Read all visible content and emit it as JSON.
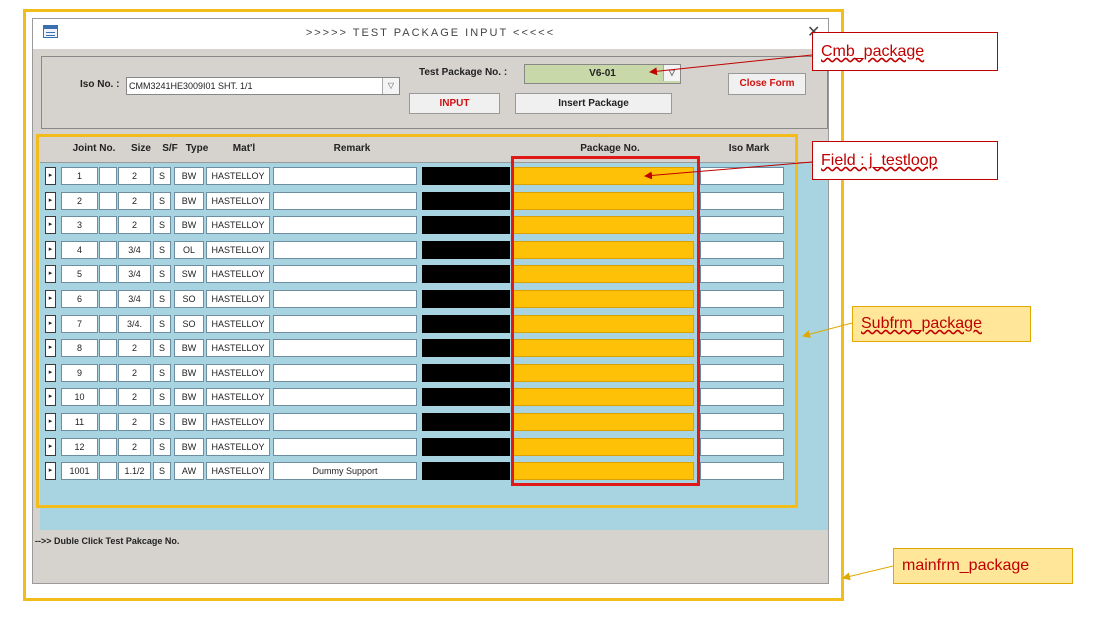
{
  "window": {
    "title": ">>>>> TEST PACKAGE INPUT <<<<<",
    "close": "✕"
  },
  "header": {
    "iso_label": "Iso No. :",
    "iso_value": "CMM3241HE3009I01 SHT. 1/1",
    "pkg_label": "Test Package No. :",
    "pkg_value": "V6-01",
    "input_button": "INPUT",
    "insert_button": "Insert Package",
    "close_button": "Close Form"
  },
  "grid": {
    "headers": {
      "joint_no": "Joint No.",
      "size": "Size",
      "sf": "S/F",
      "type": "Type",
      "matl": "Mat'l",
      "remark": "Remark",
      "package_no": "Package No.",
      "iso_mark": "Iso Mark"
    },
    "row_selector": "▸",
    "rows": [
      {
        "joint": "1",
        "size": "2",
        "sf": "S",
        "type": "BW",
        "matl": "HASTELLOY",
        "remark": ""
      },
      {
        "joint": "2",
        "size": "2",
        "sf": "S",
        "type": "BW",
        "matl": "HASTELLOY",
        "remark": ""
      },
      {
        "joint": "3",
        "size": "2",
        "sf": "S",
        "type": "BW",
        "matl": "HASTELLOY",
        "remark": ""
      },
      {
        "joint": "4",
        "size": "3/4",
        "sf": "S",
        "type": "OL",
        "matl": "HASTELLOY",
        "remark": ""
      },
      {
        "joint": "5",
        "size": "3/4",
        "sf": "S",
        "type": "SW",
        "matl": "HASTELLOY",
        "remark": ""
      },
      {
        "joint": "6",
        "size": "3/4",
        "sf": "S",
        "type": "SO",
        "matl": "HASTELLOY",
        "remark": ""
      },
      {
        "joint": "7",
        "size": "3/4.",
        "sf": "S",
        "type": "SO",
        "matl": "HASTELLOY",
        "remark": ""
      },
      {
        "joint": "8",
        "size": "2",
        "sf": "S",
        "type": "BW",
        "matl": "HASTELLOY",
        "remark": ""
      },
      {
        "joint": "9",
        "size": "2",
        "sf": "S",
        "type": "BW",
        "matl": "HASTELLOY",
        "remark": ""
      },
      {
        "joint": "10",
        "size": "2",
        "sf": "S",
        "type": "BW",
        "matl": "HASTELLOY",
        "remark": ""
      },
      {
        "joint": "11",
        "size": "2",
        "sf": "S",
        "type": "BW",
        "matl": "HASTELLOY",
        "remark": ""
      },
      {
        "joint": "12",
        "size": "2",
        "sf": "S",
        "type": "BW",
        "matl": "HASTELLOY",
        "remark": ""
      },
      {
        "joint": "1001",
        "size": "1.1/2",
        "sf": "S",
        "type": "AW",
        "matl": "HASTELLOY",
        "remark": "Dummy Support"
      }
    ]
  },
  "status": "-->> Duble Click Test Pakcage No.",
  "callouts": {
    "cmb": "Cmb_package",
    "field": "Field : j_testloop",
    "subfrm": "Subfrm_package",
    "mainfrm": "mainfrm_package"
  },
  "colors": {
    "highlight_yellow": "#f2bc1a",
    "highlight_red": "#e01818",
    "package_cell": "#ffc107",
    "grid_bg": "#a7d4e0"
  }
}
